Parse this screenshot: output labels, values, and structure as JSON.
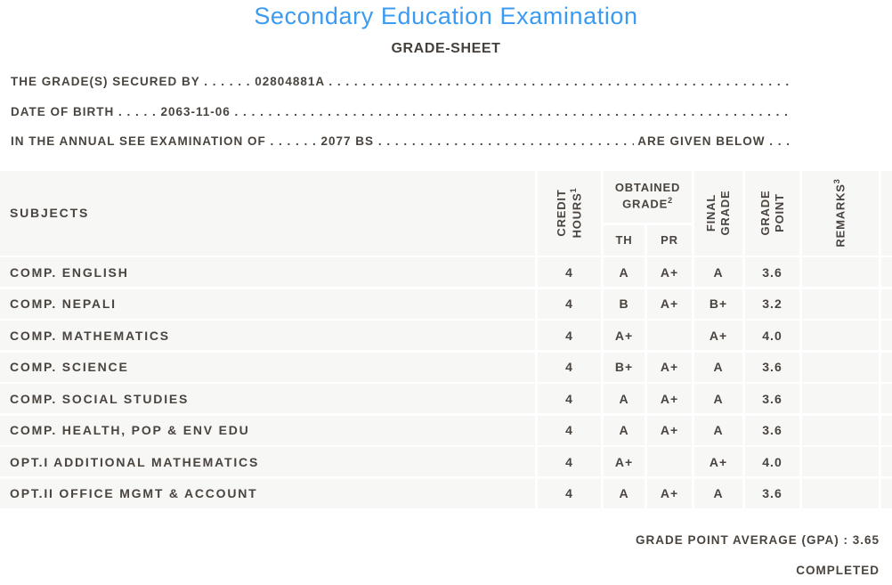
{
  "header": {
    "title": "Secondary Education Examination",
    "subtitle": "GRADE-SHEET"
  },
  "info_lines": {
    "line1": "THE GRADE(S) SECURED BY . . . . . . 02804881A . . . . . . . . . . . . . . . . . . . . . . . . . . . . . . . . . . . . . . . . . . . . . . . . . . . . . . . . . . . . . . . . . . . .",
    "line2": "DATE OF BIRTH . . . . . 2063-11-06 . . . . . . . . . . . . . . . . . . . . . . . . . . . . . . . . . . . . . . . . . . . . . . . . . . . . . . . . . . . . . . . . . . . . . . . .",
    "line3_prefix": "IN THE ANNUAL SEE EXAMINATION OF . . . . . . 2077 BS ",
    "line3_fill": ". . . . . . . . . . . . . . . . . . . . . . . . . . . . . . . . . . . . . . . . . . . . . . . . . . ",
    "line3_suffix": " ARE GIVEN BELOW . . ."
  },
  "table": {
    "headers": {
      "subjects": "SUBJECTS",
      "credit_hours": {
        "line1": "CREDIT",
        "line2": "HOURS",
        "sup": "1"
      },
      "obtained_grade": {
        "line1": "OBTAINED",
        "line2": "GRADE",
        "sup": "2"
      },
      "th": "TH",
      "pr": "PR",
      "final_grade": {
        "line1": "FINAL",
        "line2": "GRADE"
      },
      "grade_point": {
        "line1": "GRADE",
        "line2": "POINT"
      },
      "remarks": {
        "label": "REMARKS",
        "sup": "3"
      }
    },
    "rows": [
      {
        "subject": "COMP. ENGLISH",
        "credit": "4",
        "th": "A",
        "pr": "A+",
        "final": "A",
        "point": "3.6",
        "remarks": ""
      },
      {
        "subject": "COMP. NEPALI",
        "credit": "4",
        "th": "B",
        "pr": "A+",
        "final": "B+",
        "point": "3.2",
        "remarks": ""
      },
      {
        "subject": "COMP. MATHEMATICS",
        "credit": "4",
        "th": "A+",
        "pr": "",
        "final": "A+",
        "point": "4.0",
        "remarks": ""
      },
      {
        "subject": "COMP. SCIENCE",
        "credit": "4",
        "th": "B+",
        "pr": "A+",
        "final": "A",
        "point": "3.6",
        "remarks": ""
      },
      {
        "subject": "COMP. SOCIAL STUDIES",
        "credit": "4",
        "th": "A",
        "pr": "A+",
        "final": "A",
        "point": "3.6",
        "remarks": ""
      },
      {
        "subject": "COMP. HEALTH, POP & ENV EDU",
        "credit": "4",
        "th": "A",
        "pr": "A+",
        "final": "A",
        "point": "3.6",
        "remarks": ""
      },
      {
        "subject": "OPT.I ADDITIONAL MATHEMATICS",
        "credit": "4",
        "th": "A+",
        "pr": "",
        "final": "A+",
        "point": "4.0",
        "remarks": ""
      },
      {
        "subject": "OPT.II OFFICE MGMT & ACCOUNT",
        "credit": "4",
        "th": "A",
        "pr": "A+",
        "final": "A",
        "point": "3.6",
        "remarks": ""
      }
    ]
  },
  "footer": {
    "gpa_label": "GRADE POINT AVERAGE (GPA) : ",
    "gpa_value": "3.65",
    "status": "COMPLETED"
  },
  "colors": {
    "title_blue": "#3b9bf0",
    "text_dark": "#4a443f",
    "row_bg": "#f7f7f6"
  }
}
